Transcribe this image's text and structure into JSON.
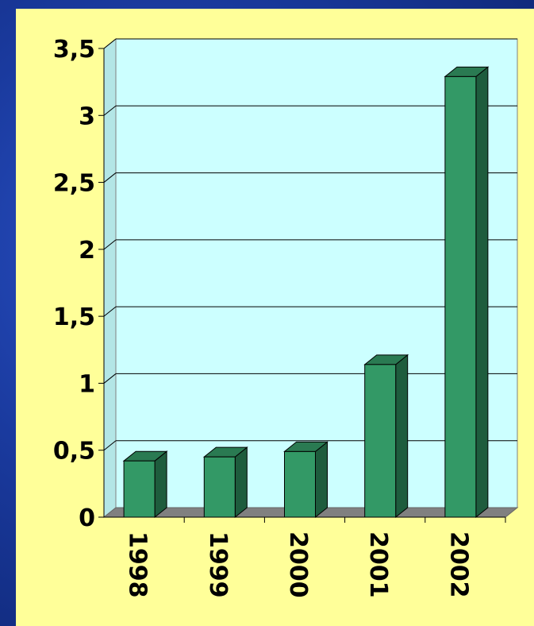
{
  "chart_data": {
    "type": "bar",
    "title": "",
    "xlabel": "",
    "ylabel": "",
    "categories": [
      "1998",
      "1999",
      "2000",
      "2001",
      "2002"
    ],
    "values": [
      0.42,
      0.45,
      0.49,
      1.14,
      3.29
    ],
    "ylim": [
      0,
      3.5
    ],
    "y_ticks": [
      "0",
      "0,5",
      "1",
      "1,5",
      "2",
      "2,5",
      "3",
      "3,5"
    ],
    "grid": true,
    "legend": "none",
    "colors": {
      "bar_front": "#339966",
      "bar_side": "#1e5c3d",
      "bar_top": "#2a7a52",
      "plot_area": "#ccffff",
      "floor": "#808080",
      "panel": "#ffff99"
    }
  }
}
